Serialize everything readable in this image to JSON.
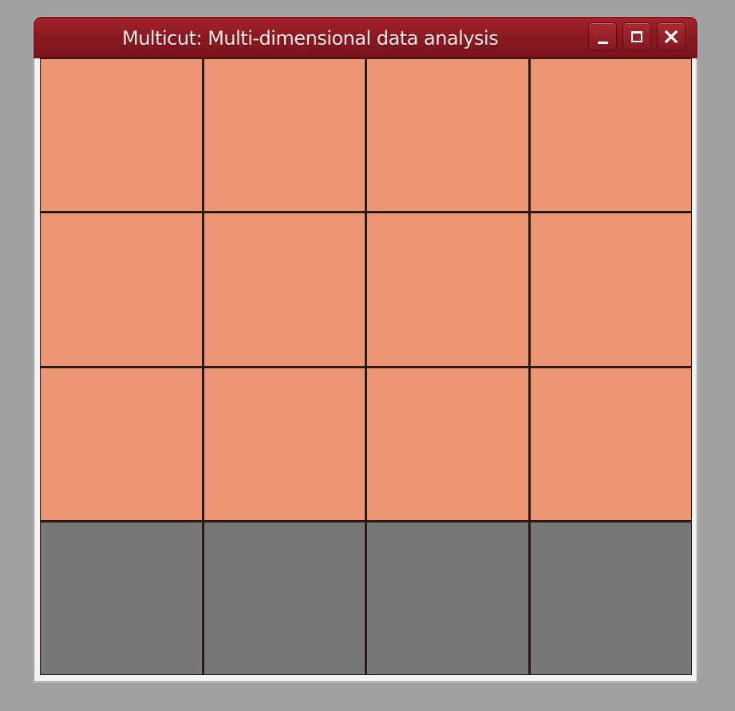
{
  "window": {
    "title": "Multicut: Multi-dimensional data analysis",
    "controls": [
      {
        "name": "minimize",
        "icon": "minimize-icon"
      },
      {
        "name": "maximize",
        "icon": "maximize-icon"
      },
      {
        "name": "close",
        "icon": "close-icon"
      }
    ]
  },
  "colors": {
    "titlebar": "#8c1a22",
    "cell_active": "#ec9676",
    "cell_inactive": "#777777",
    "grid_lines": "#2a1a16",
    "desktop": "#a0a0a0"
  },
  "grid": {
    "rows": 4,
    "columns": 4,
    "cells": [
      [
        "active",
        "active",
        "active",
        "active"
      ],
      [
        "active",
        "active",
        "active",
        "active"
      ],
      [
        "active",
        "active",
        "active",
        "active"
      ],
      [
        "inactive",
        "inactive",
        "inactive",
        "inactive"
      ]
    ]
  }
}
